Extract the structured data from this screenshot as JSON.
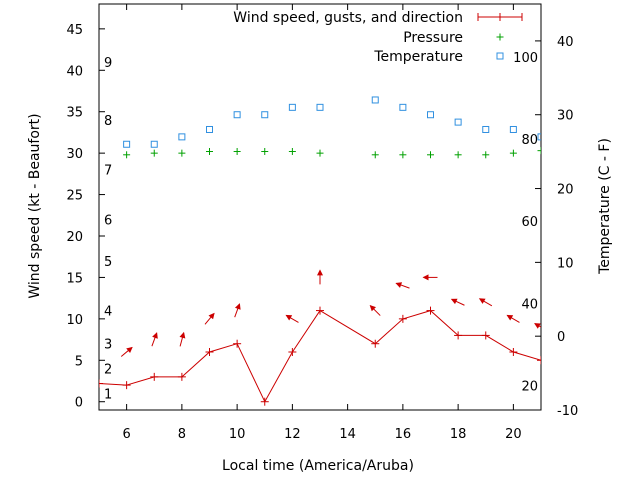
{
  "chart_data": {
    "type": "line",
    "xlabel": "Local time (America/Aruba)",
    "ylabel_left": "Wind speed (kt - Beaufort)",
    "ylabel_right": "Temperature (C - F)",
    "x_range": [
      5,
      21
    ],
    "y_left_range": [
      -1,
      48
    ],
    "y_right_range": [
      -10,
      45
    ],
    "x_ticks": [
      6,
      8,
      10,
      12,
      14,
      16,
      18,
      20
    ],
    "y_left_ticks": [
      0,
      5,
      10,
      15,
      20,
      25,
      30,
      35,
      40,
      45
    ],
    "y_right_ticks": [
      -10,
      0,
      10,
      20,
      30,
      40
    ],
    "beaufort_labels": [
      {
        "label": "1",
        "kt": 1
      },
      {
        "label": "2",
        "kt": 4
      },
      {
        "label": "3",
        "kt": 7
      },
      {
        "label": "4",
        "kt": 11
      },
      {
        "label": "5",
        "kt": 17
      },
      {
        "label": "6",
        "kt": 22
      },
      {
        "label": "7",
        "kt": 28
      },
      {
        "label": "8",
        "kt": 34
      },
      {
        "label": "9",
        "kt": 41
      }
    ],
    "fahrenheit_labels": [
      {
        "label": "20",
        "c": -6.7
      },
      {
        "label": "40",
        "c": 4.4
      },
      {
        "label": "60",
        "c": 15.6
      },
      {
        "label": "80",
        "c": 26.7
      },
      {
        "label": "100",
        "c": 37.8
      }
    ],
    "legend": [
      "Wind speed, gusts, and direction",
      "Pressure",
      "Temperature"
    ],
    "series": [
      {
        "name": "Wind speed, gusts, and direction",
        "color": "#cc0000",
        "x": [
          5,
          6,
          7,
          8,
          9,
          10,
          11,
          12,
          13,
          15,
          16,
          17,
          18,
          19,
          20,
          21
        ],
        "values": [
          2.2,
          2,
          3,
          3,
          6,
          7,
          0,
          6,
          11,
          7,
          10,
          11,
          8,
          8,
          6,
          5
        ]
      },
      {
        "name": "Pressure",
        "color": "#00a000",
        "x": [
          6,
          7,
          8,
          9,
          10,
          11,
          12,
          13,
          15,
          16,
          17,
          18,
          19,
          20,
          21
        ],
        "values": [
          29.8,
          30,
          30,
          30.2,
          30.2,
          30.2,
          30.2,
          30,
          29.8,
          29.8,
          29.8,
          29.8,
          29.8,
          30,
          30.3
        ]
      },
      {
        "name": "Temperature",
        "color": "#3090e0",
        "x": [
          6,
          7,
          8,
          9,
          10,
          11,
          12,
          13,
          15,
          16,
          17,
          18,
          19,
          20,
          21
        ],
        "values": [
          26,
          26,
          27,
          28,
          30,
          30,
          31,
          31,
          32,
          31,
          30,
          29,
          28,
          28,
          27
        ]
      }
    ],
    "wind_direction_arrows": [
      {
        "x": 6,
        "kt": 6,
        "dir_deg": 50
      },
      {
        "x": 7,
        "kt": 7.5,
        "dir_deg": 20
      },
      {
        "x": 8,
        "kt": 7.5,
        "dir_deg": 15
      },
      {
        "x": 9,
        "kt": 10,
        "dir_deg": 40
      },
      {
        "x": 10,
        "kt": 11,
        "dir_deg": 20
      },
      {
        "x": 12,
        "kt": 10,
        "dir_deg": 300
      },
      {
        "x": 13,
        "kt": 15,
        "dir_deg": 0
      },
      {
        "x": 15,
        "kt": 11,
        "dir_deg": 315
      },
      {
        "x": 16,
        "kt": 14,
        "dir_deg": 290
      },
      {
        "x": 17,
        "kt": 15,
        "dir_deg": 270
      },
      {
        "x": 18,
        "kt": 12,
        "dir_deg": 295
      },
      {
        "x": 19,
        "kt": 12,
        "dir_deg": 300
      },
      {
        "x": 20,
        "kt": 10,
        "dir_deg": 300
      },
      {
        "x": 21,
        "kt": 9,
        "dir_deg": 300
      }
    ]
  }
}
